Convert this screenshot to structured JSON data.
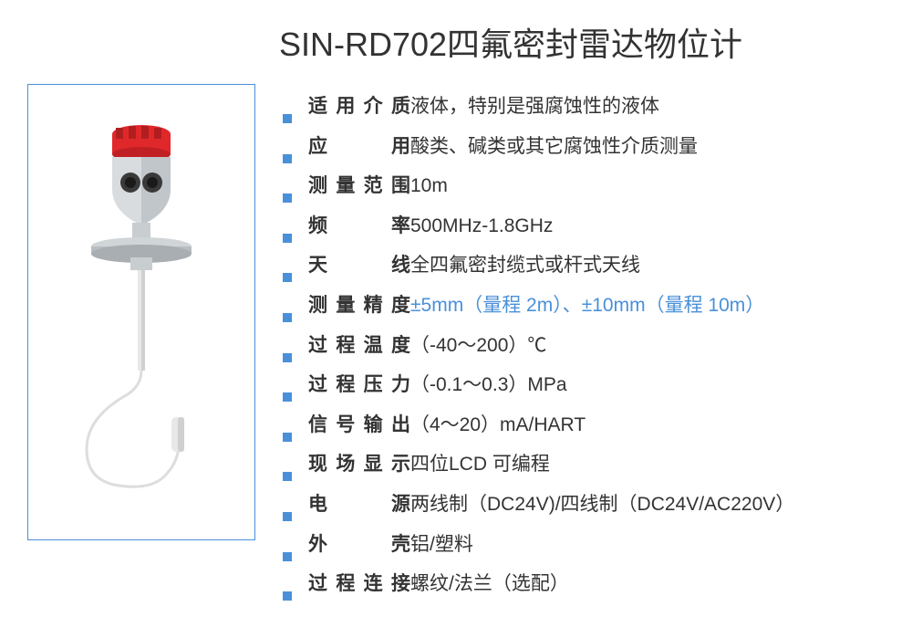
{
  "title": "SIN-RD702四氟密封雷达物位计",
  "bullet_color": "#4a90d9",
  "border_color": "#4a90d9",
  "text_color": "#333333",
  "accent_color": "#4a90d9",
  "specs": [
    {
      "label": "适用介质",
      "value": "液体，特别是强腐蚀性的液体",
      "highlight": false
    },
    {
      "label": "应　　用",
      "value": "酸类、碱类或其它腐蚀性介质测量",
      "highlight": false
    },
    {
      "label": "测量范围",
      "value": "10m",
      "highlight": false
    },
    {
      "label": "频　　率",
      "value": "500MHz-1.8GHz",
      "highlight": false
    },
    {
      "label": "天　　线",
      "value": "全四氟密封缆式或杆式天线",
      "highlight": false
    },
    {
      "label": "测量精度",
      "value": "±5mm（量程 2m）、±10mm（量程 10m）",
      "highlight": true
    },
    {
      "label": "过程温度",
      "value": "（-40～200）℃",
      "highlight": false
    },
    {
      "label": "过程压力",
      "value": "（-0.1～0.3）MPa",
      "highlight": false
    },
    {
      "label": "信号输出",
      "value": "（4～20）mA/HART",
      "highlight": false
    },
    {
      "label": "现场显示",
      "value": "四位LCD 可编程",
      "highlight": false
    },
    {
      "label": "电　　源",
      "value": "两线制（DC24V)/四线制（DC24V/AC220V）",
      "highlight": false
    },
    {
      "label": "外　　壳",
      "value": "铝/塑料",
      "highlight": false
    },
    {
      "label": "过程连接",
      "value": "螺纹/法兰（选配）",
      "highlight": false
    }
  ],
  "product_colors": {
    "cap": "#e0282b",
    "body": "#d8dcde",
    "body_shadow": "#b0b6ba",
    "flange": "#c8cdd0",
    "rod": "#e8e8e8",
    "cable": "#dddddd",
    "sensor_dark": "#3a3a3a"
  }
}
